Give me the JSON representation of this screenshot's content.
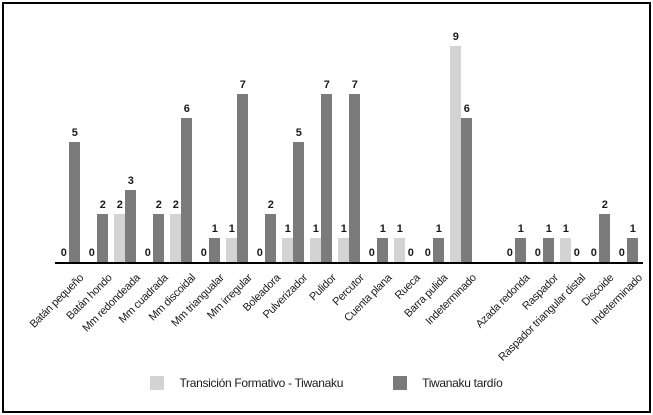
{
  "chart_data": {
    "type": "bar",
    "title": "",
    "xlabel": "",
    "ylabel": "",
    "ylim": [
      0,
      10
    ],
    "grid": false,
    "y_axis_shown": false,
    "bar_value_labels": true,
    "legend_position": "bottom-center",
    "cluster_break_after_index": 14,
    "categories": [
      "Batán pequeño",
      "Batán hondo",
      "Mm redondeada",
      "Mm cuadrada",
      "Mm discoidal",
      "Mm triangualar",
      "Mm irregular",
      "Boleadora",
      "Pulverizador",
      "Pulidor",
      "Percutor",
      "Cuenta plana",
      "Rueca",
      "Barra pulida",
      "Indeterminado",
      "Azada redonda",
      "Raspador",
      "Raspador triangular distal",
      "Discoide",
      "Indeterminado"
    ],
    "series": [
      {
        "name": "Transición Formativo - Tiwanaku",
        "color": "#d3d3d3",
        "values": [
          0,
          0,
          2,
          0,
          2,
          0,
          1,
          0,
          1,
          1,
          1,
          0,
          1,
          0,
          9,
          0,
          0,
          1,
          0,
          0
        ]
      },
      {
        "name": "Tiwanaku tardío",
        "color": "#7b7b7b",
        "values": [
          5,
          2,
          3,
          2,
          6,
          1,
          7,
          2,
          5,
          7,
          7,
          1,
          0,
          1,
          6,
          1,
          1,
          0,
          2,
          1
        ]
      }
    ],
    "colors": {
      "axis_line": "#000000",
      "value_label_text": "#1a1a1a",
      "background": "#ffffff",
      "frame_border": "#000000"
    }
  }
}
